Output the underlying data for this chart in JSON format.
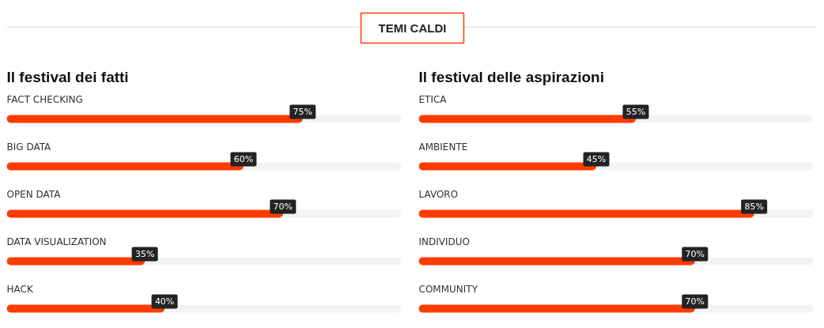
{
  "chart_data": [
    {
      "type": "bar",
      "orientation": "horizontal",
      "title": "Il festival dei fatti",
      "annotations": [
        "TEMI CALDI"
      ],
      "categories": [
        "FACT CHECKING",
        "BIG DATA",
        "OPEN DATA",
        "DATA VISUALIZATION",
        "HACK"
      ],
      "values": [
        75,
        60,
        70,
        35,
        40
      ],
      "value_labels": [
        "75%",
        "60%",
        "70%",
        "35%",
        "40%"
      ],
      "color": "#ff3c00",
      "xlim": [
        0,
        100
      ],
      "tick_labels": "y"
    },
    {
      "type": "bar",
      "orientation": "horizontal",
      "title": "Il festival delle aspirazioni",
      "categories": [
        "ETICA",
        "AMBIENTE",
        "LAVORO",
        "INDIVIDUO",
        "COMMUNITY"
      ],
      "values": [
        55,
        45,
        85,
        70,
        70
      ],
      "value_labels": [
        "55%",
        "45%",
        "85%",
        "70%",
        "70%"
      ],
      "color": "#ff3c00",
      "xlim": [
        0,
        100
      ],
      "tick_labels": "y"
    }
  ]
}
